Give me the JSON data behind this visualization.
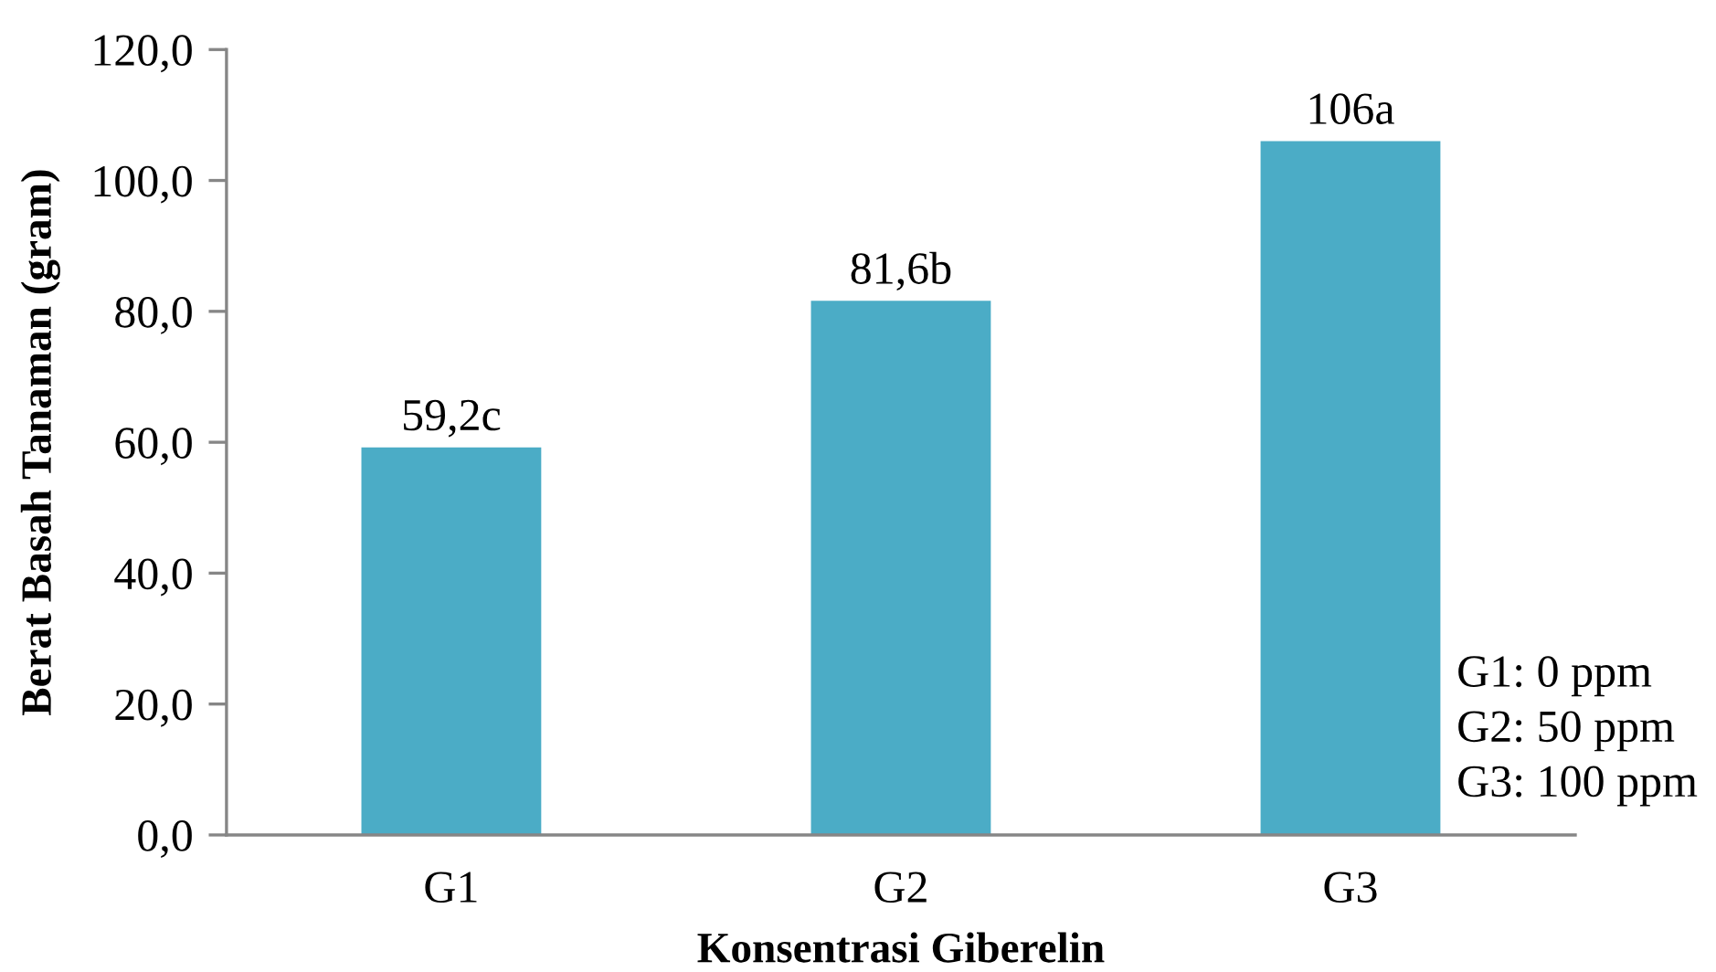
{
  "chart_data": {
    "type": "bar",
    "xlabel": "Konsentrasi Giberelin",
    "ylabel": "Berat Basah Tanaman (gram)",
    "categories": [
      "G1",
      "G2",
      "G3"
    ],
    "values": [
      59.2,
      81.6,
      106
    ],
    "value_labels": [
      "59,2c",
      "81,6b",
      "106a"
    ],
    "color": "#4bacc6",
    "ylim": [
      0,
      120
    ],
    "yticks": [
      {
        "value": 0,
        "label": "0,0"
      },
      {
        "value": 20,
        "label": "20,0"
      },
      {
        "value": 40,
        "label": "40,0"
      },
      {
        "value": 60,
        "label": "60,0"
      },
      {
        "value": 80,
        "label": "80,0"
      },
      {
        "value": 100,
        "label": "100,0"
      },
      {
        "value": 120,
        "label": "120,0"
      }
    ],
    "grid": false,
    "legend": false,
    "annotations": [
      "G1: 0 ppm",
      "G2: 50 ppm",
      "G3: 100 ppm"
    ]
  }
}
